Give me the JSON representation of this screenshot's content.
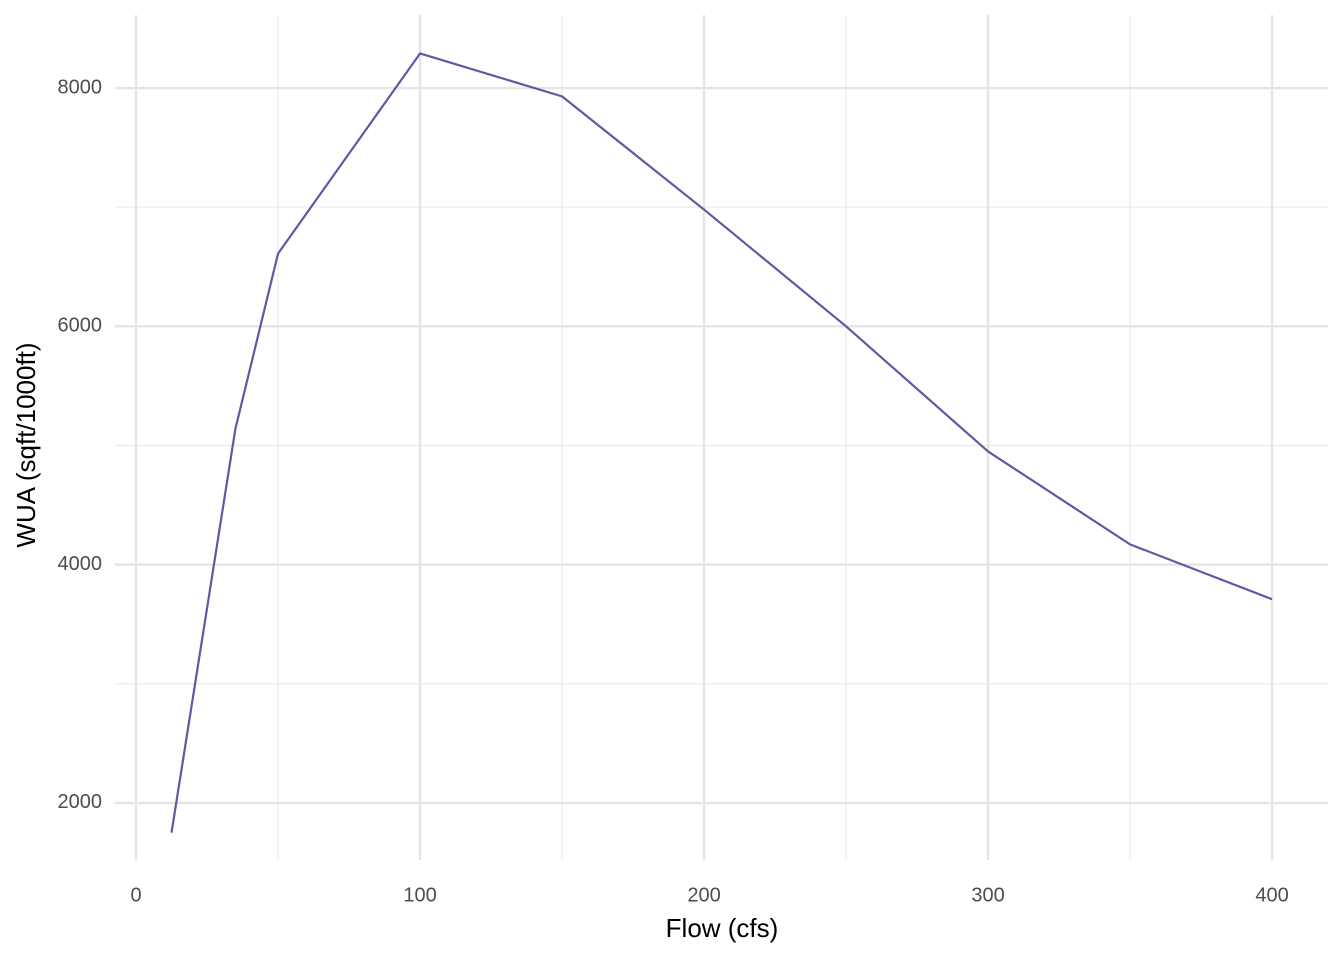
{
  "chart_data": {
    "type": "line",
    "x_label": "Flow (cfs)",
    "y_label": "WUA (sqft/1000ft)",
    "x": [
      12.5,
      35,
      50,
      100,
      150,
      200,
      250,
      300,
      350,
      400
    ],
    "values": [
      1750,
      5140,
      6610,
      8290,
      7930,
      6980,
      6000,
      4950,
      4170,
      3710
    ],
    "color": "#6257a5",
    "xlim": [
      -7.4,
      419.7
    ],
    "ylim": [
      1521,
      8613
    ],
    "xticks": [
      0,
      100,
      200,
      300,
      400
    ],
    "yticks": [
      2000,
      4000,
      6000,
      8000
    ],
    "minor_xticks": [
      50,
      150,
      250,
      350
    ],
    "minor_yticks": [
      3000,
      5000,
      7000
    ],
    "grid": true
  }
}
